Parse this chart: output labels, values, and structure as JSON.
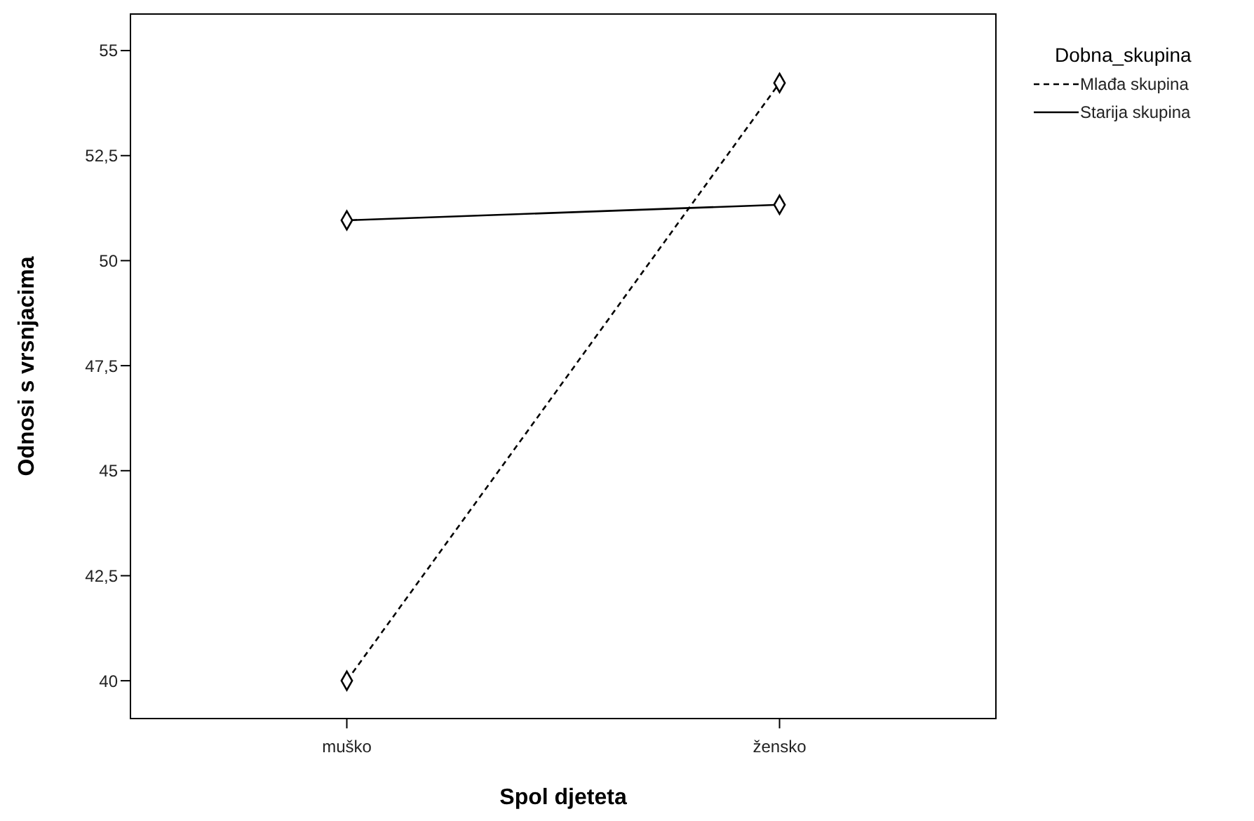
{
  "chart_data": {
    "type": "line",
    "xlabel": "Spol djeteta",
    "ylabel": "Odnosi s vrsnjacima",
    "legend_title": "Dobna_skupina",
    "legend": "right",
    "marker": "diamond",
    "grid": false,
    "categories": [
      "muško",
      "žensko"
    ],
    "ylim": [
      39.1,
      55.87
    ],
    "yticks": [
      {
        "value": 40,
        "label": "40"
      },
      {
        "value": 42.5,
        "label": "42,5"
      },
      {
        "value": 45,
        "label": "45"
      },
      {
        "value": 47.5,
        "label": "47,5"
      },
      {
        "value": 50,
        "label": "50"
      },
      {
        "value": 52.5,
        "label": "52,5"
      },
      {
        "value": 55,
        "label": "55"
      }
    ],
    "series": [
      {
        "name": "Mlađa skupina",
        "color": "#000000",
        "line_style": "dashed",
        "values": [
          40,
          54.23
        ]
      },
      {
        "name": "Starija skupina",
        "color": "#000000",
        "line_style": "solid",
        "values": [
          50.96,
          51.33
        ]
      }
    ]
  }
}
